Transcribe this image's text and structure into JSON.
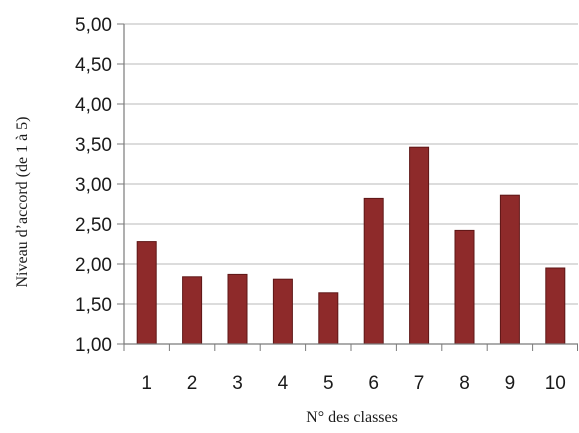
{
  "chart_data": {
    "type": "bar",
    "title": "",
    "xlabel": "N° des classes",
    "ylabel": "Niveau d’accord (de 1 à 5)",
    "categories": [
      "1",
      "2",
      "3",
      "4",
      "5",
      "6",
      "7",
      "8",
      "9",
      "10"
    ],
    "values": [
      2.28,
      1.84,
      1.87,
      1.81,
      1.64,
      2.82,
      3.46,
      2.42,
      2.86,
      1.95
    ],
    "ylim": [
      1.0,
      5.0
    ],
    "yticks": [
      1.0,
      1.5,
      2.0,
      2.5,
      3.0,
      3.5,
      4.0,
      4.5,
      5.0
    ],
    "ytick_labels": [
      "1,00",
      "1,50",
      "2,00",
      "2,50",
      "3,00",
      "3,50",
      "4,00",
      "4,50",
      "5,00"
    ],
    "grid": true,
    "legend": "none",
    "colors": {
      "bar_fill": "#8E2A2A",
      "bar_stroke": "#5E1616",
      "grid": "#B8B8B8",
      "axis": "#7A7A7A"
    }
  }
}
